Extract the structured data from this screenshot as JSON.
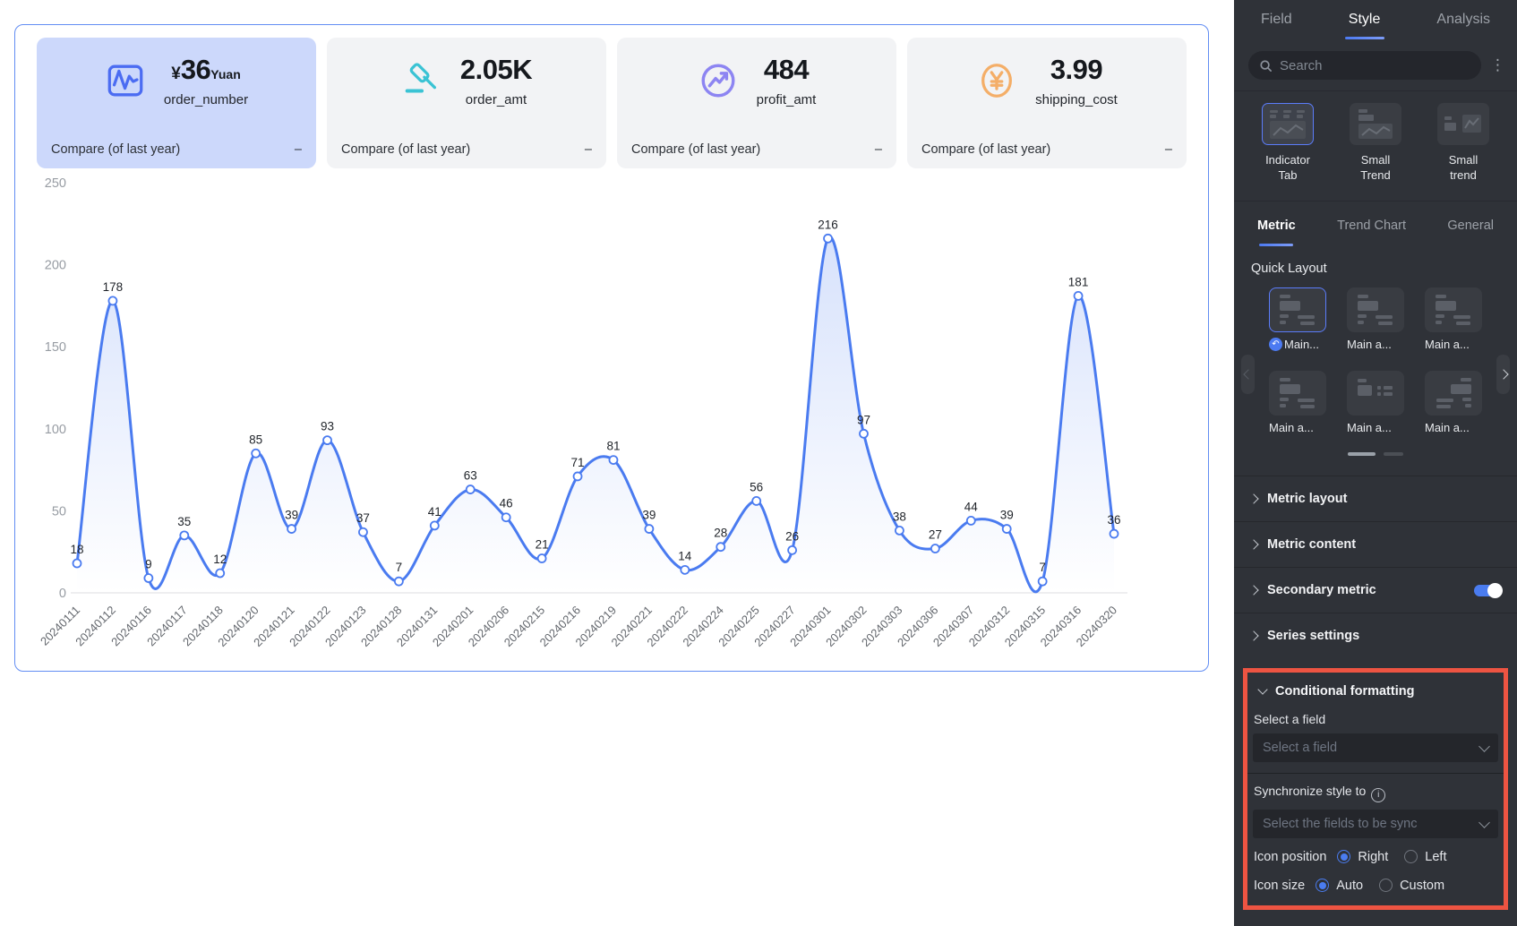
{
  "widget": {
    "cards": [
      {
        "prefix": "¥",
        "value": "36",
        "suffix": "Yuan",
        "label": "order_number",
        "compare_label": "Compare (of last year)",
        "compare_value": "–"
      },
      {
        "prefix": "",
        "value": "2.05K",
        "suffix": "",
        "label": "order_amt",
        "compare_label": "Compare (of last year)",
        "compare_value": "–"
      },
      {
        "prefix": "",
        "value": "484",
        "suffix": "",
        "label": "profit_amt",
        "compare_label": "Compare (of last year)",
        "compare_value": "–"
      },
      {
        "prefix": "",
        "value": "3.99",
        "suffix": "",
        "label": "shipping_cost",
        "compare_label": "Compare (of last year)",
        "compare_value": "–"
      }
    ],
    "card_icons": [
      "line-chart-icon",
      "gavel-icon",
      "trend-up-circle-icon",
      "yuan-circle-icon"
    ],
    "accent_colors": {
      "card1": "#4b6cf2",
      "card2": "#3ac3d4",
      "card3": "#8d85f2",
      "card4": "#f4ae68"
    }
  },
  "chart_data": {
    "type": "line",
    "x": [
      "20240111",
      "20240112",
      "20240116",
      "20240117",
      "20240118",
      "20240120",
      "20240121",
      "20240122",
      "20240123",
      "20240128",
      "20240131",
      "20240201",
      "20240206",
      "20240215",
      "20240216",
      "20240219",
      "20240221",
      "20240222",
      "20240224",
      "20240225",
      "20240227",
      "20240301",
      "20240302",
      "20240303",
      "20240306",
      "20240307",
      "20240312",
      "20240315",
      "20240316",
      "20240320"
    ],
    "values": [
      18,
      178,
      9,
      35,
      12,
      85,
      39,
      93,
      37,
      7,
      41,
      63,
      46,
      21,
      71,
      81,
      39,
      14,
      28,
      56,
      26,
      216,
      97,
      38,
      27,
      44,
      39,
      7,
      181,
      36
    ],
    "ylim": [
      0,
      250
    ],
    "yticks": [
      0,
      50,
      100,
      150,
      200,
      250
    ],
    "line_color": "#4a7bf0",
    "marker": "open-circle",
    "area": true,
    "grid": false,
    "show_point_labels": true,
    "xlabel": "",
    "ylabel": "",
    "legend_position": "none"
  },
  "panel": {
    "tabs": [
      {
        "label": "Field",
        "active": false
      },
      {
        "label": "Style",
        "active": true
      },
      {
        "label": "Analysis",
        "active": false
      }
    ],
    "search": {
      "placeholder": "Search"
    },
    "chart_types": [
      {
        "line1": "Indicator",
        "line2": "Tab",
        "selected": true
      },
      {
        "line1": "Small",
        "line2": "Trend",
        "selected": false
      },
      {
        "line1": "Small",
        "line2": "trend",
        "selected": false
      }
    ],
    "sub_tabs": [
      {
        "label": "Metric",
        "active": true
      },
      {
        "label": "Trend Chart",
        "active": false
      },
      {
        "label": "General",
        "active": false
      }
    ],
    "quick_layout": {
      "title": "Quick Layout",
      "tiles": [
        {
          "label": "Main...",
          "selected": true,
          "badge": true
        },
        {
          "label": "Main a...",
          "selected": false
        },
        {
          "label": "Main a...",
          "selected": false
        },
        {
          "label": "Main a...",
          "selected": false
        },
        {
          "label": "Main a...",
          "selected": false
        },
        {
          "label": "Main a...",
          "selected": false
        }
      ]
    },
    "sections": [
      {
        "label": "Metric layout"
      },
      {
        "label": "Metric content"
      },
      {
        "label": "Secondary metric",
        "toggle_on": true
      },
      {
        "label": "Series settings"
      }
    ],
    "conditional": {
      "title": "Conditional formatting",
      "field_label": "Select a field",
      "field_placeholder": "Select a field",
      "sync_label": "Synchronize style to",
      "sync_placeholder": "Select the fields to be sync",
      "icon_position": {
        "label": "Icon position",
        "options": [
          {
            "label": "Right",
            "selected": true
          },
          {
            "label": "Left",
            "selected": false
          }
        ]
      },
      "icon_size": {
        "label": "Icon size",
        "options": [
          {
            "label": "Auto",
            "selected": true
          },
          {
            "label": "Custom",
            "selected": false
          }
        ]
      }
    },
    "colors": {
      "accent": "#4a7bf0",
      "highlight_box": "#ee5442",
      "toggle_on": "#4a7cf0"
    }
  }
}
